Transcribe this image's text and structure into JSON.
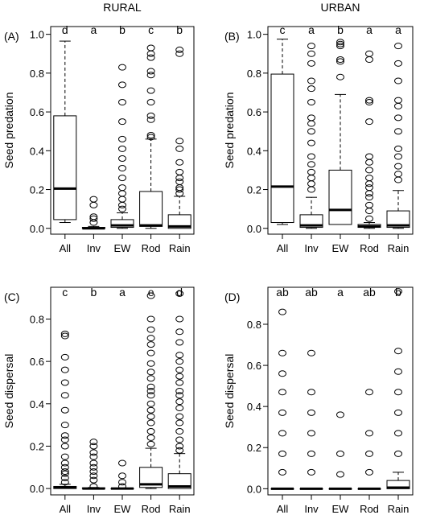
{
  "chart_data": [
    {
      "type": "box",
      "panel_label": "(A)",
      "title": "RURAL",
      "ylabel": "Seed predation",
      "ylim": [
        -0.03,
        1.04
      ],
      "yticks": [
        "0.0",
        "0.2",
        "0.4",
        "0.6",
        "0.8",
        "1.0"
      ],
      "categories": [
        "All",
        "Inv",
        "EW",
        "Rod",
        "Rain"
      ],
      "letters": [
        "d",
        "a",
        "b",
        "c",
        "b"
      ],
      "boxes": [
        {
          "whislo": 0.03,
          "q1": 0.045,
          "med": 0.205,
          "q3": 0.58,
          "whishi": 0.965,
          "fliers": []
        },
        {
          "whislo": 0.0,
          "q1": 0.0,
          "med": 0.0,
          "q3": 0.005,
          "whishi": 0.01,
          "fliers": [
            0.03,
            0.05,
            0.06,
            0.12,
            0.15
          ]
        },
        {
          "whislo": 0.0,
          "q1": 0.005,
          "med": 0.015,
          "q3": 0.045,
          "whishi": 0.08,
          "fliers": [
            0.1,
            0.12,
            0.15,
            0.18,
            0.21,
            0.26,
            0.31,
            0.36,
            0.41,
            0.46,
            0.55,
            0.65,
            0.74,
            0.83
          ]
        },
        {
          "whislo": 0.0,
          "q1": 0.01,
          "med": 0.015,
          "q3": 0.19,
          "whishi": 0.46,
          "fliers": [
            0.47,
            0.48,
            0.56,
            0.58,
            0.65,
            0.71,
            0.79,
            0.81,
            0.88,
            0.9,
            0.93
          ]
        },
        {
          "whislo": 0.0,
          "q1": 0.0,
          "med": 0.01,
          "q3": 0.07,
          "whishi": 0.165,
          "fliers": [
            0.18,
            0.2,
            0.21,
            0.24,
            0.26,
            0.29,
            0.34,
            0.41,
            0.45,
            0.9,
            0.92
          ]
        }
      ]
    },
    {
      "type": "box",
      "panel_label": "(B)",
      "title": "URBAN",
      "ylabel": "Seed predation",
      "ylim": [
        -0.03,
        1.04
      ],
      "yticks": [
        "0.0",
        "0.2",
        "0.4",
        "0.6",
        "0.8",
        "1.0"
      ],
      "categories": [
        "All",
        "Inv",
        "EW",
        "Rod",
        "Rain"
      ],
      "letters": [
        "c",
        "a",
        "b",
        "a",
        "a"
      ],
      "boxes": [
        {
          "whislo": 0.02,
          "q1": 0.03,
          "med": 0.215,
          "q3": 0.795,
          "whishi": 0.975,
          "fliers": []
        },
        {
          "whislo": 0.0,
          "q1": 0.005,
          "med": 0.015,
          "q3": 0.07,
          "whishi": 0.16,
          "fliers": [
            0.2,
            0.23,
            0.26,
            0.29,
            0.33,
            0.37,
            0.44,
            0.5,
            0.54,
            0.57,
            0.65,
            0.72,
            0.76,
            0.85,
            0.9,
            0.94
          ]
        },
        {
          "whislo": 0.02,
          "q1": 0.02,
          "med": 0.095,
          "q3": 0.3,
          "whishi": 0.69,
          "fliers": [
            0.78,
            0.86,
            0.87,
            0.94,
            0.95,
            0.96
          ]
        },
        {
          "whislo": 0.0,
          "q1": 0.005,
          "med": 0.01,
          "q3": 0.02,
          "whishi": 0.03,
          "fliers": [
            0.05,
            0.09,
            0.12,
            0.16,
            0.18,
            0.21,
            0.23,
            0.26,
            0.3,
            0.34,
            0.37,
            0.55,
            0.65,
            0.66,
            0.87,
            0.9
          ]
        },
        {
          "whislo": 0.0,
          "q1": 0.005,
          "med": 0.015,
          "q3": 0.09,
          "whishi": 0.195,
          "fliers": [
            0.25,
            0.28,
            0.32,
            0.37,
            0.41,
            0.5,
            0.57,
            0.63,
            0.66,
            0.76,
            0.85,
            0.94
          ]
        }
      ]
    },
    {
      "type": "box",
      "panel_label": "(C)",
      "title": "",
      "ylabel": "Seed dispersal",
      "ylim": [
        -0.03,
        0.95
      ],
      "yticks": [
        "0.0",
        "0.2",
        "0.4",
        "0.6",
        "0.8"
      ],
      "categories": [
        "All",
        "Inv",
        "EW",
        "Rod",
        "Rain"
      ],
      "letters": [
        "c",
        "b",
        "a",
        "e",
        "d"
      ],
      "boxes": [
        {
          "whislo": 0.0,
          "q1": 0.0,
          "med": 0.005,
          "q3": 0.01,
          "whishi": 0.02,
          "fliers": [
            0.03,
            0.05,
            0.07,
            0.08,
            0.1,
            0.12,
            0.15,
            0.2,
            0.23,
            0.25,
            0.3,
            0.37,
            0.44,
            0.5,
            0.56,
            0.62,
            0.72,
            0.73
          ]
        },
        {
          "whislo": 0.0,
          "q1": 0.0,
          "med": 0.0,
          "q3": 0.003,
          "whishi": 0.005,
          "fliers": [
            0.01,
            0.04,
            0.06,
            0.08,
            0.1,
            0.12,
            0.15,
            0.17,
            0.2,
            0.22
          ]
        },
        {
          "whislo": 0.0,
          "q1": 0.0,
          "med": 0.0,
          "q3": 0.0,
          "whishi": 0.0,
          "fliers": [
            0.01,
            0.03,
            0.06,
            0.12
          ]
        },
        {
          "whislo": 0.0,
          "q1": 0.005,
          "med": 0.02,
          "q3": 0.1,
          "whishi": 0.19,
          "fliers": [
            0.21,
            0.24,
            0.27,
            0.31,
            0.34,
            0.37,
            0.4,
            0.44,
            0.46,
            0.48,
            0.52,
            0.55,
            0.59,
            0.64,
            0.68,
            0.71,
            0.75,
            0.8,
            0.91
          ]
        },
        {
          "whislo": 0.0,
          "q1": 0.0,
          "med": 0.01,
          "q3": 0.07,
          "whishi": 0.165,
          "fliers": [
            0.18,
            0.2,
            0.23,
            0.27,
            0.31,
            0.34,
            0.38,
            0.41,
            0.44,
            0.46,
            0.5,
            0.53,
            0.56,
            0.6,
            0.63,
            0.69,
            0.74,
            0.8,
            0.92
          ]
        }
      ]
    },
    {
      "type": "box",
      "panel_label": "(D)",
      "title": "",
      "ylabel": "Seed dispersal",
      "ylim": [
        -0.03,
        0.98
      ],
      "yticks": [
        "0.0",
        "0.2",
        "0.4",
        "0.6",
        "0.8"
      ],
      "categories": [
        "All",
        "Inv",
        "EW",
        "Rod",
        "Rain"
      ],
      "letters": [
        "ab",
        "ab",
        "a",
        "ab",
        "b"
      ],
      "boxes": [
        {
          "whislo": 0.0,
          "q1": 0.0,
          "med": 0.0,
          "q3": 0.0,
          "whishi": 0.0,
          "fliers": [
            0.08,
            0.17,
            0.27,
            0.37,
            0.47,
            0.56,
            0.66,
            0.86
          ]
        },
        {
          "whislo": 0.0,
          "q1": 0.0,
          "med": 0.0,
          "q3": 0.0,
          "whishi": 0.0,
          "fliers": [
            0.08,
            0.17,
            0.27,
            0.37,
            0.47,
            0.66
          ]
        },
        {
          "whislo": 0.0,
          "q1": 0.0,
          "med": 0.0,
          "q3": 0.0,
          "whishi": 0.0,
          "fliers": [
            0.07,
            0.17,
            0.36
          ]
        },
        {
          "whislo": 0.0,
          "q1": 0.0,
          "med": 0.0,
          "q3": 0.0,
          "whishi": 0.0,
          "fliers": [
            0.08,
            0.17,
            0.27,
            0.47
          ]
        },
        {
          "whislo": 0.0,
          "q1": 0.0,
          "med": 0.005,
          "q3": 0.04,
          "whishi": 0.08,
          "fliers": [
            0.17,
            0.27,
            0.37,
            0.47,
            0.57,
            0.67,
            0.96
          ]
        }
      ]
    }
  ]
}
